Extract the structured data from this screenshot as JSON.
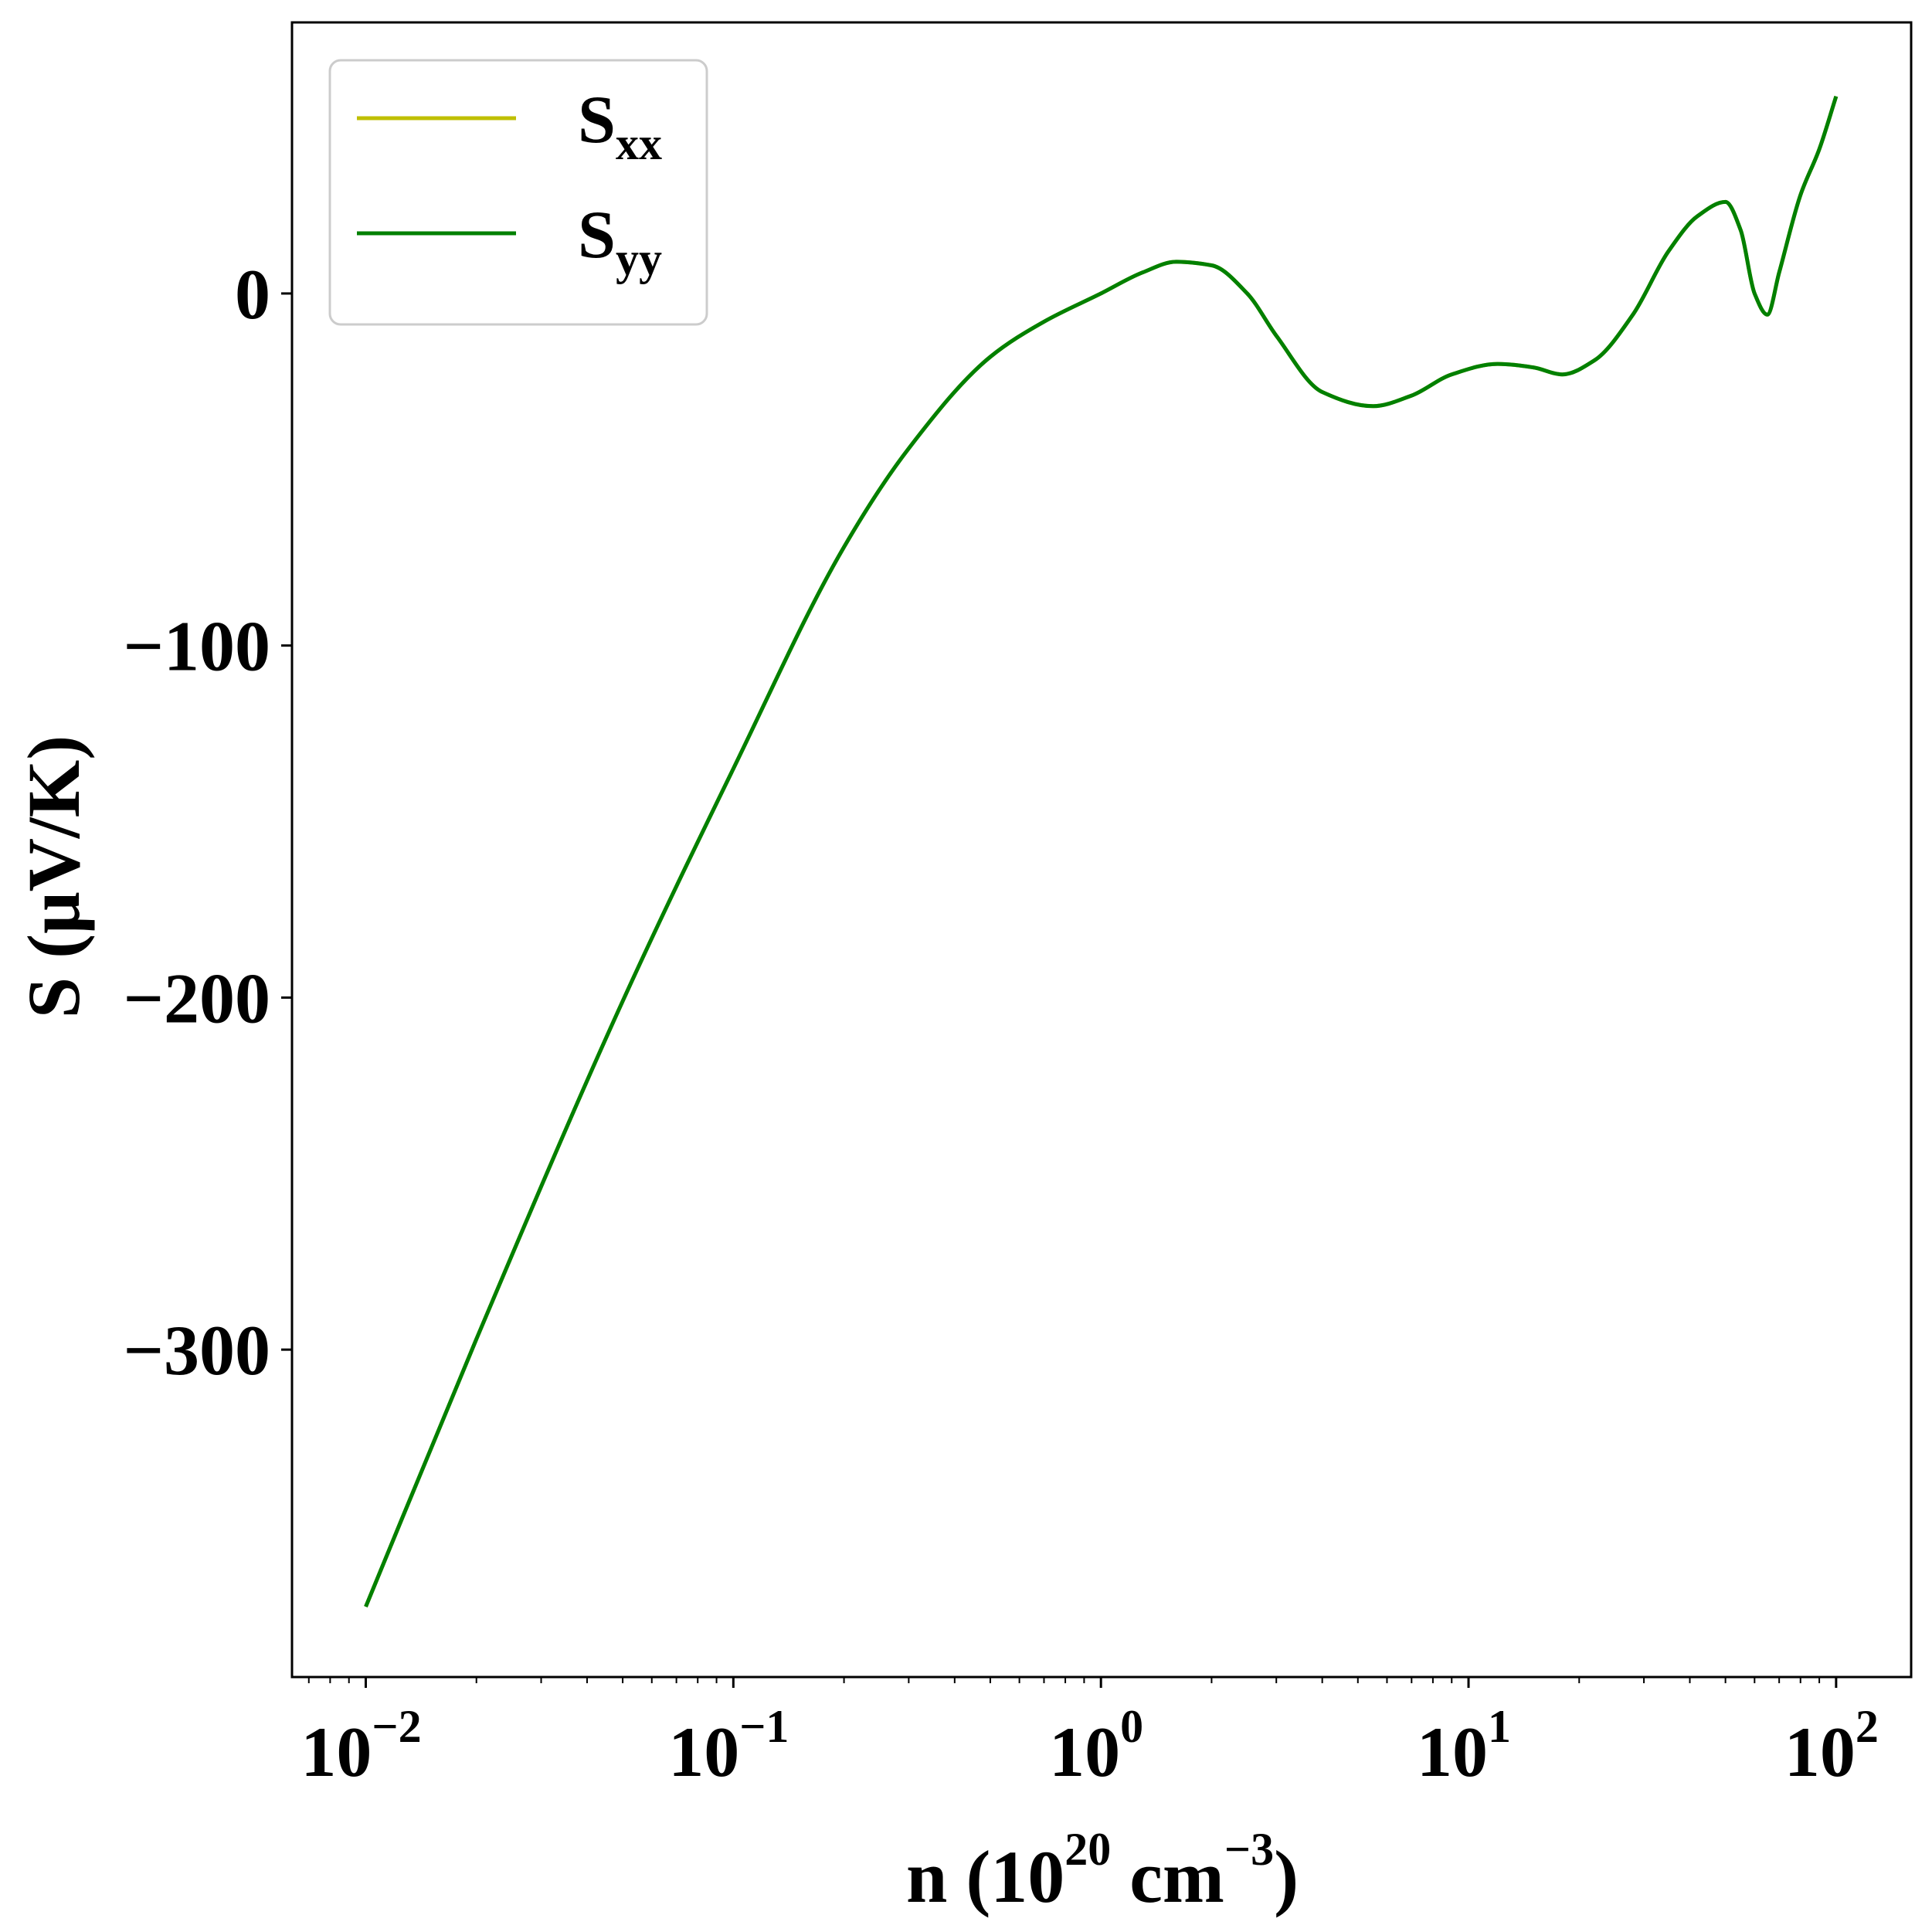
{
  "chart_data": {
    "type": "line",
    "xscale": "log",
    "xlim": [
      0.0063,
      160
    ],
    "ylim": [
      -393,
      77
    ],
    "xlabel": {
      "prefix": "n (10",
      "sup1": "20",
      "middle": " cm",
      "sup2": "−3",
      "suffix": ")"
    },
    "ylabel": "S (μV/K)",
    "yticks": [
      {
        "value": 0,
        "label": "0"
      },
      {
        "value": -100,
        "label": "−100"
      },
      {
        "value": -200,
        "label": "−200"
      },
      {
        "value": -300,
        "label": "−300"
      }
    ],
    "xticks": [
      {
        "value": 0.01,
        "base": "10",
        "exp": "−2"
      },
      {
        "value": 0.1,
        "base": "10",
        "exp": "−1"
      },
      {
        "value": 1,
        "base": "10",
        "exp": "0"
      },
      {
        "value": 10,
        "base": "10",
        "exp": "1"
      },
      {
        "value": 100,
        "base": "10",
        "exp": "2"
      }
    ],
    "legend": {
      "placement": "upper-left",
      "entries": [
        {
          "base": "S",
          "sub": "xx",
          "color": "#bfbf00"
        },
        {
          "base": "S",
          "sub": "yy",
          "color": "#008000"
        }
      ]
    },
    "series": [
      {
        "color": "#bfbf00",
        "x": [
          0.01,
          0.02,
          0.05,
          0.1,
          0.2,
          0.3,
          0.5,
          0.7,
          1.0,
          1.3,
          1.6,
          2.0,
          2.5,
          3.0,
          4.0,
          5.5,
          7.0,
          9.0,
          12.0,
          15.0,
          18.0,
          22.0,
          28.0,
          35.0,
          42.0,
          50.0,
          55.0,
          60.0,
          65.0,
          70.0,
          80.0,
          90.0,
          100.0
        ],
        "y": [
          -373,
          -297,
          -201,
          -135,
          -72,
          -44,
          -18,
          -8,
          0,
          6,
          9,
          8,
          0,
          -12,
          -28,
          -32,
          -29,
          -23,
          -20,
          -21,
          -23,
          -19,
          -6,
          12,
          22,
          26,
          18,
          0,
          -6,
          6,
          28,
          41,
          56
        ]
      },
      {
        "color": "#008000",
        "x": [
          0.01,
          0.02,
          0.05,
          0.1,
          0.2,
          0.3,
          0.5,
          0.7,
          1.0,
          1.3,
          1.6,
          2.0,
          2.5,
          3.0,
          4.0,
          5.5,
          7.0,
          9.0,
          12.0,
          15.0,
          18.0,
          22.0,
          28.0,
          35.0,
          42.0,
          50.0,
          55.0,
          60.0,
          65.0,
          70.0,
          80.0,
          90.0,
          100.0
        ],
        "y": [
          -373,
          -297,
          -201,
          -135,
          -72,
          -44,
          -18,
          -8,
          0,
          6,
          9,
          8,
          0,
          -12,
          -28,
          -32,
          -29,
          -23,
          -20,
          -21,
          -23,
          -19,
          -6,
          12,
          22,
          26,
          18,
          0,
          -6,
          6,
          28,
          41,
          56
        ]
      }
    ]
  }
}
